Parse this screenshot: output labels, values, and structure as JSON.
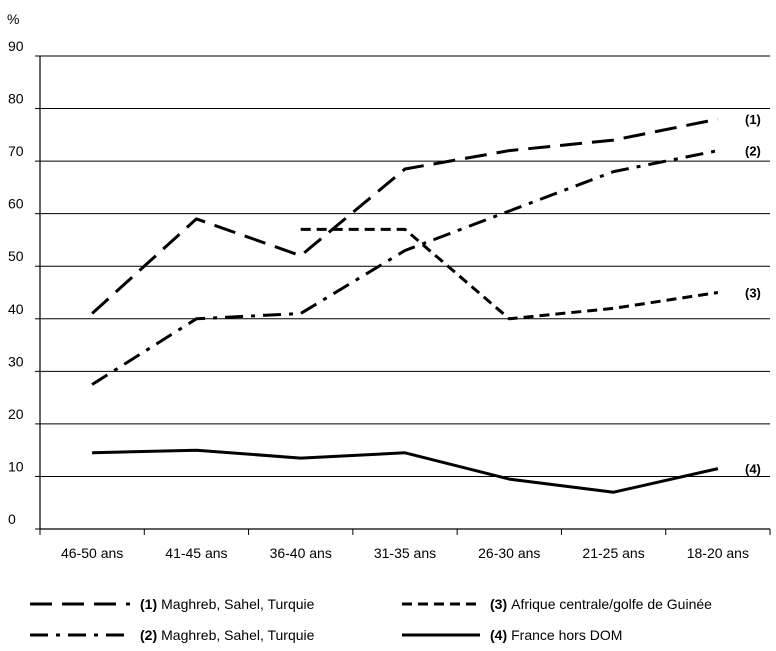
{
  "chart_data": {
    "type": "line",
    "ylabel": "%",
    "ylim": [
      0,
      90
    ],
    "yticks": [
      "0",
      "10",
      "20",
      "30",
      "40",
      "50",
      "60",
      "70",
      "80",
      "90"
    ],
    "categories": [
      "46-50 ans",
      "41-45 ans",
      "36-40 ans",
      "31-35 ans",
      "26-30 ans",
      "21-25 ans",
      "18-20 ans"
    ],
    "grid": "horizontal",
    "legend_position": "bottom",
    "series": [
      {
        "id": "1",
        "name_num": "(1)",
        "name_text": "Maghreb, Sahel, Turquie",
        "end_label": "(1)",
        "style": "long-dash",
        "values": [
          41,
          59,
          52,
          68.5,
          72,
          74,
          78
        ]
      },
      {
        "id": "2",
        "name_num": "(2)",
        "name_text": "Maghreb, Sahel, Turquie",
        "end_label": "(2)",
        "style": "dash-dot",
        "values": [
          27.5,
          40,
          41,
          53,
          60.5,
          68,
          72
        ]
      },
      {
        "id": "3",
        "name_num": "(3)",
        "name_text": "Afrique centrale/golfe de Guinée",
        "end_label": "(3)",
        "style": "short-dash",
        "values": [
          null,
          null,
          57,
          57,
          40,
          42,
          45
        ]
      },
      {
        "id": "4",
        "name_num": "(4)",
        "name_text": "France hors DOM",
        "end_label": "(4)",
        "style": "solid",
        "values": [
          14.5,
          15,
          13.5,
          14.5,
          9.5,
          7,
          11.5
        ]
      }
    ]
  }
}
